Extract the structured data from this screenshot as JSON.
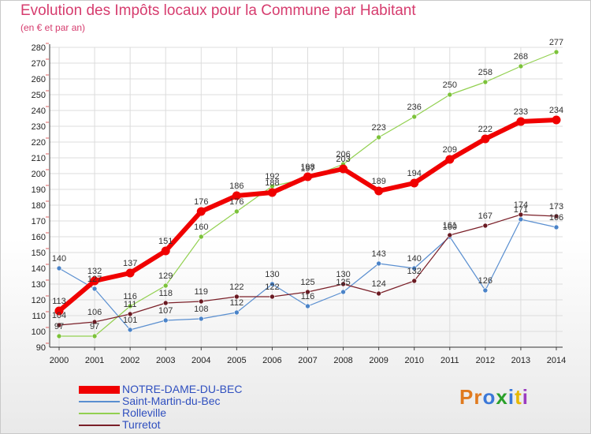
{
  "title": "Evolution des Impôts locaux pour la Commune par Habitant",
  "subtitle": "(en € et par an)",
  "brand": {
    "text": "Proxiti",
    "letter_colors": [
      "#e07a1f",
      "#e07a1f",
      "#3b78d8",
      "#2aa02a",
      "#3b78d8",
      "#e8b800",
      "#9b3bbf"
    ]
  },
  "chart_data": {
    "type": "line",
    "x": [
      "2000",
      "2001",
      "2002",
      "2003",
      "2004",
      "2005",
      "2006",
      "2007",
      "2008",
      "2009",
      "2010",
      "2011",
      "2012",
      "2013",
      "2014"
    ],
    "ylim": [
      90,
      280
    ],
    "yticks": [
      90,
      100,
      110,
      120,
      130,
      140,
      150,
      160,
      170,
      180,
      190,
      200,
      210,
      220,
      230,
      240,
      250,
      260,
      270,
      280
    ],
    "grid": true,
    "legend_position": "bottom-left",
    "series": [
      {
        "name": "Saint-Martin-du-Bec",
        "color": "#5a8fd0",
        "marker": "#4a83c8",
        "width": 1.2,
        "r": 3,
        "values": [
          140,
          127,
          101,
          107,
          108,
          112,
          130,
          116,
          125,
          143,
          140,
          160,
          126,
          171,
          166
        ],
        "labels": [
          "140",
          "127",
          "101",
          "107",
          "108",
          "112",
          "130",
          "116",
          "125",
          "143",
          "140",
          "160",
          "126",
          "171",
          "166"
        ]
      },
      {
        "name": "Rolleville",
        "color": "#92d050",
        "marker": "#7cc23a",
        "width": 1.2,
        "r": 3,
        "values": [
          97,
          97,
          116,
          129,
          160,
          176,
          192,
          197,
          206,
          223,
          236,
          250,
          258,
          268,
          277
        ],
        "labels": [
          "97",
          "97",
          "116",
          "129",
          "160",
          "176",
          "192",
          "197",
          "206",
          "223",
          "236",
          "250",
          "258",
          "268",
          "277"
        ]
      },
      {
        "name": "Turretot",
        "color": "#7a1f28",
        "marker": "#6a1a22",
        "width": 1.2,
        "r": 3,
        "values": [
          104,
          106,
          111,
          118,
          119,
          122,
          122,
          125,
          130,
          124,
          132,
          161,
          167,
          174,
          173
        ],
        "labels": [
          "104",
          "106",
          "111",
          "118",
          "119",
          "122",
          "122",
          "125",
          "130",
          "124",
          "132",
          "161",
          "167",
          "174",
          "173"
        ]
      },
      {
        "name": "NOTRE-DAME-DU-BEC",
        "color": "#f00000",
        "marker": "#f00000",
        "width": 6,
        "r": 5.5,
        "values": [
          113,
          132,
          137,
          151,
          176,
          186,
          188,
          198,
          203,
          189,
          194,
          209,
          222,
          233,
          234
        ],
        "labels": [
          "113",
          "132",
          "137",
          "151",
          "176",
          "186",
          "188",
          "198",
          "203",
          "189",
          "194",
          "209",
          "222",
          "233",
          "234"
        ]
      }
    ],
    "legend": [
      "NOTRE-DAME-DU-BEC",
      "Saint-Martin-du-Bec",
      "Rolleville",
      "Turretot"
    ]
  }
}
